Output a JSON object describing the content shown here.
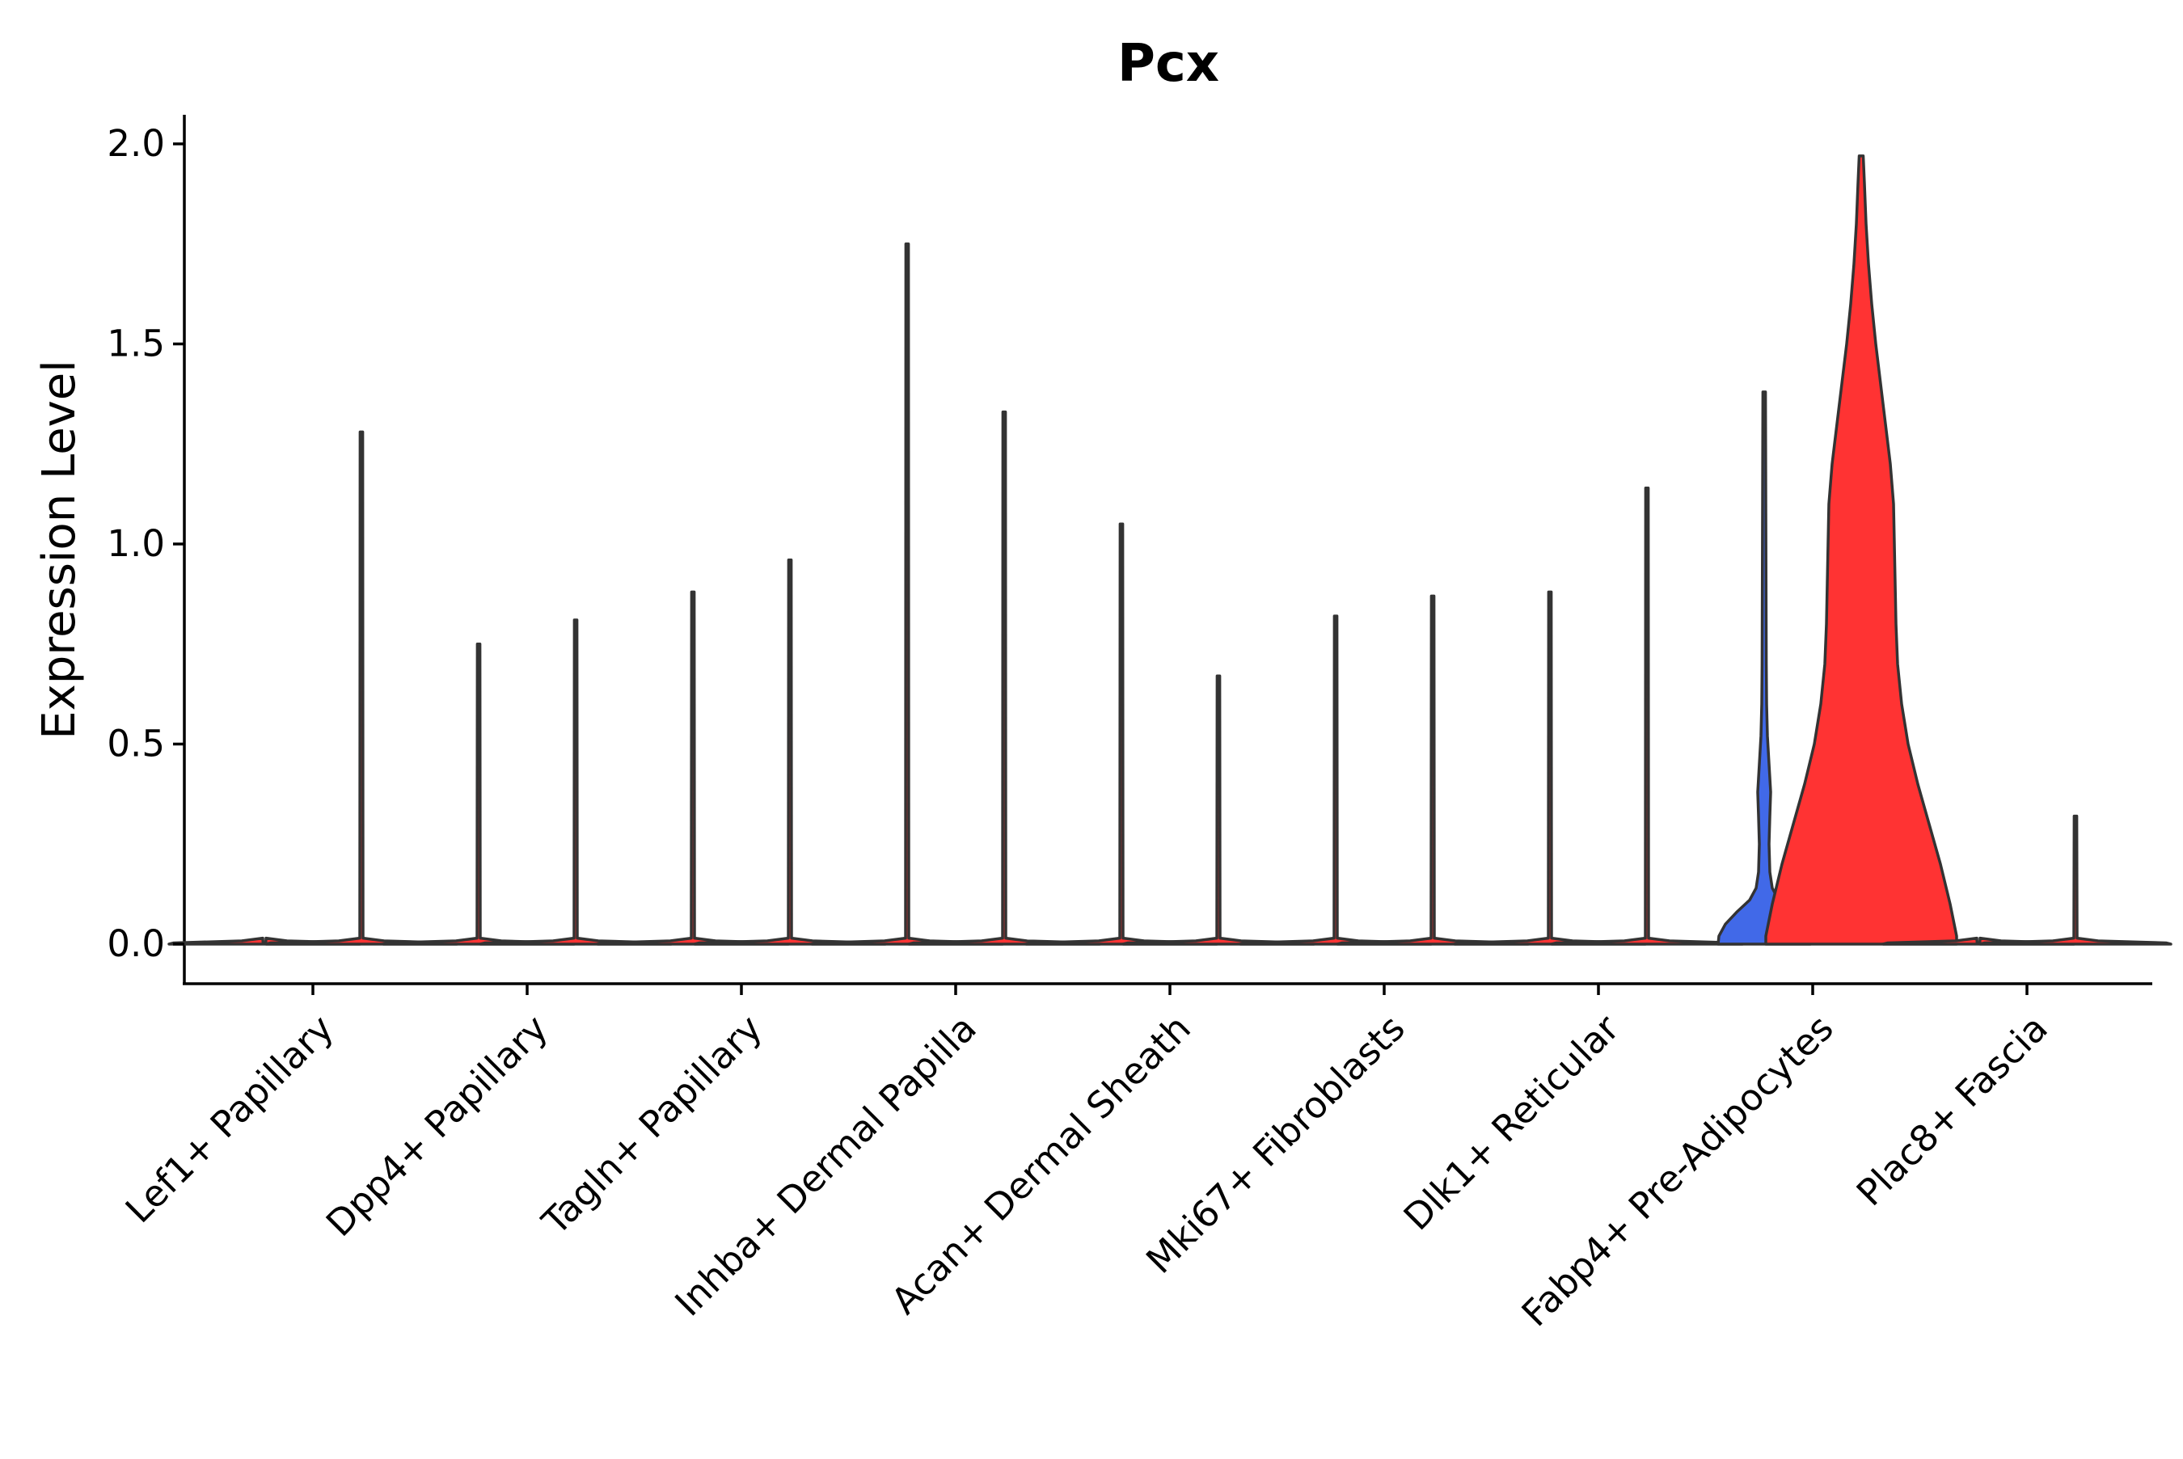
{
  "chart_data": {
    "type": "violin",
    "title": "Pcx",
    "xlabel": "",
    "ylabel": "Expression Level",
    "ylim": [
      -0.1,
      2.07
    ],
    "yticks": [
      0.0,
      0.5,
      1.0,
      1.5,
      2.0
    ],
    "ytick_labels": [
      "0.0",
      "0.5",
      "1.0",
      "1.5",
      "2.0"
    ],
    "grid": false,
    "legend": "none",
    "categories": [
      "Lef1+ Papillary",
      "Dpp4+ Papillary",
      "Tagln+ Papillary",
      "Inhba+ Dermal Papilla",
      "Acan+ Dermal Sheath",
      "Mki67+ Fibroblasts",
      "Dlk1+ Reticular",
      "Fabp4+ Pre-Adipocytes",
      "Plac8+ Fascia"
    ],
    "colors": {
      "low_group": "#4169E8",
      "high_group": "#FF3333",
      "outline": "#333333",
      "axis": "#000000"
    },
    "groups": [
      {
        "category": "Lef1+ Papillary",
        "side": "left",
        "max": 0.0,
        "fill": "#FF3333"
      },
      {
        "category": "Lef1+ Papillary",
        "side": "right",
        "max": 1.28,
        "fill": "#FF3333"
      },
      {
        "category": "Dpp4+ Papillary",
        "side": "left",
        "max": 0.75,
        "fill": "#FF3333"
      },
      {
        "category": "Dpp4+ Papillary",
        "side": "right",
        "max": 0.81,
        "fill": "#FF3333"
      },
      {
        "category": "Tagln+ Papillary",
        "side": "left",
        "max": 0.88,
        "fill": "#FF3333"
      },
      {
        "category": "Tagln+ Papillary",
        "side": "right",
        "max": 0.96,
        "fill": "#FF3333"
      },
      {
        "category": "Inhba+ Dermal Papilla",
        "side": "left",
        "max": 1.75,
        "fill": "#FF3333"
      },
      {
        "category": "Inhba+ Dermal Papilla",
        "side": "right",
        "max": 1.33,
        "fill": "#FF3333"
      },
      {
        "category": "Acan+ Dermal Sheath",
        "side": "left",
        "max": 1.05,
        "fill": "#FF3333"
      },
      {
        "category": "Acan+ Dermal Sheath",
        "side": "right",
        "max": 0.67,
        "fill": "#FF3333"
      },
      {
        "category": "Mki67+ Fibroblasts",
        "side": "left",
        "max": 0.82,
        "fill": "#FF3333"
      },
      {
        "category": "Mki67+ Fibroblasts",
        "side": "right",
        "max": 0.87,
        "fill": "#FF3333"
      },
      {
        "category": "Dlk1+ Reticular",
        "side": "left",
        "max": 0.88,
        "fill": "#FF3333"
      },
      {
        "category": "Dlk1+ Reticular",
        "side": "right",
        "max": 1.14,
        "fill": "#FF3333"
      },
      {
        "category": "Fabp4+ Pre-Adipocytes",
        "side": "left",
        "max": 1.38,
        "fill": "#4169E8"
      },
      {
        "category": "Fabp4+ Pre-Adipocytes",
        "side": "right",
        "max": 1.97,
        "fill": "#FF3333"
      },
      {
        "category": "Plac8+ Fascia",
        "side": "left",
        "max": 0.0,
        "fill": "#FF3333"
      },
      {
        "category": "Plac8+ Fascia",
        "side": "right",
        "max": 0.32,
        "fill": "#FF3333"
      }
    ]
  }
}
